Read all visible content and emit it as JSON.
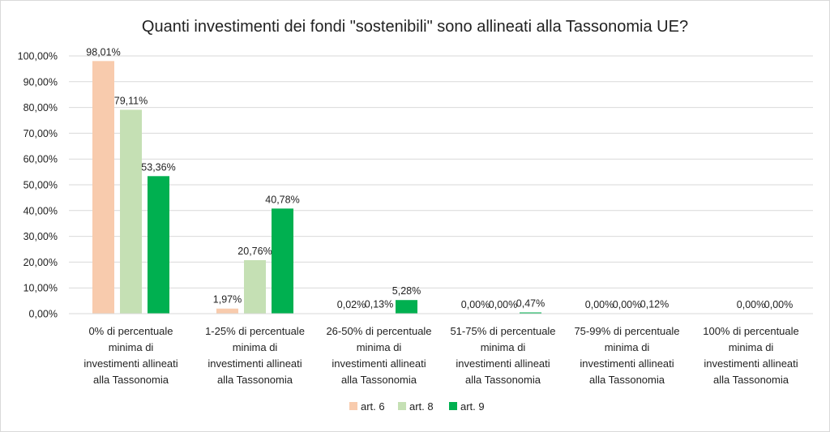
{
  "chart_data": {
    "type": "bar",
    "title": "Quanti investimenti dei fondi \"sostenibili\" sono allineati alla Tassonomia UE?",
    "xlabel": "",
    "ylabel": "",
    "ylim": [
      0,
      100
    ],
    "y_tick_labels": [
      "0,00%",
      "10,00%",
      "20,00%",
      "30,00%",
      "40,00%",
      "50,00%",
      "60,00%",
      "70,00%",
      "80,00%",
      "90,00%",
      "100,00%"
    ],
    "grid": true,
    "legend_position": "bottom",
    "categories": [
      [
        "0% di percentuale",
        "minima di",
        "investimenti allineati",
        "alla Tassonomia"
      ],
      [
        "1-25% di percentuale",
        "minima di",
        "investimenti allineati",
        "alla Tassonomia"
      ],
      [
        "26-50% di percentuale",
        "minima di",
        "investimenti allineati",
        "alla Tassonomia"
      ],
      [
        "51-75% di percentuale",
        "minima di",
        "investimenti allineati",
        "alla Tassonomia"
      ],
      [
        "75-99% di percentuale",
        "minima di",
        "investimenti allineati",
        "alla Tassonomia"
      ],
      [
        "100% di percentuale",
        "minima di",
        "investimenti allineati",
        "alla Tassonomia"
      ]
    ],
    "series": [
      {
        "name": "art. 6",
        "color": "#f8cbad",
        "values": [
          98.01,
          1.97,
          0.02,
          0.0,
          0.0,
          null
        ],
        "labels": [
          "98,01%",
          "1,97%",
          "0,02%",
          "0,00%",
          "0,00%",
          ""
        ]
      },
      {
        "name": "art. 8",
        "color": "#c5e0b4",
        "values": [
          79.11,
          20.76,
          0.13,
          0.0,
          0.0,
          0.0
        ],
        "labels": [
          "79,11%",
          "20,76%",
          "0,13%",
          "0,00%",
          "0,00%",
          "0,00%"
        ]
      },
      {
        "name": "art. 9",
        "color": "#00b050",
        "values": [
          53.36,
          40.78,
          5.28,
          0.47,
          0.12,
          0.0
        ],
        "labels": [
          "53,36%",
          "40,78%",
          "5,28%",
          "0,47%",
          "0,12%",
          "0,00%"
        ]
      }
    ]
  }
}
